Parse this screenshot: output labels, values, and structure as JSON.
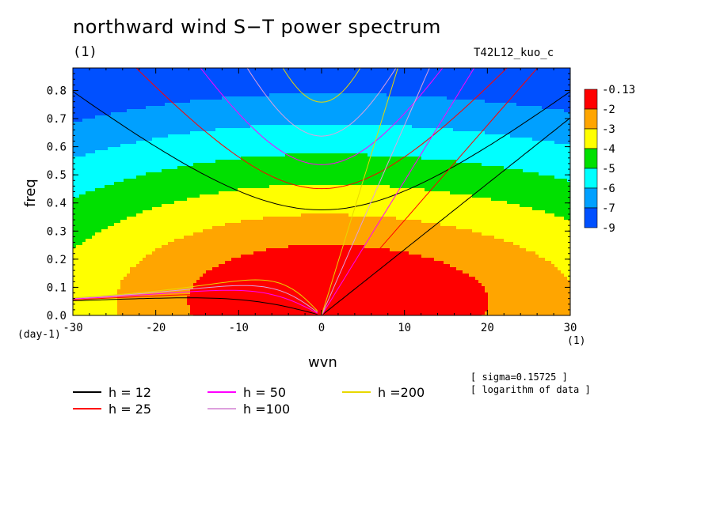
{
  "title": "northward wind S−T power spectrum",
  "subtitle_left": "(1)",
  "subtitle_right": "T42L12_kuo_c",
  "xlabel": "wvn",
  "xunit": "(1)",
  "ylabel": "freq",
  "yunit": "(day-1)",
  "notes": [
    "[ sigma=0.15725 ]",
    "[ logarithm of data ]"
  ],
  "chart_data": {
    "type": "heatmap",
    "title": "northward wind S−T power spectrum",
    "xlabel": "wvn",
    "ylabel": "freq",
    "xlim": [
      -30,
      30
    ],
    "ylim": [
      0,
      0.88
    ],
    "xticks": [
      -30,
      -20,
      -10,
      0,
      10,
      20,
      30
    ],
    "xtick_labels": [
      "-30",
      "-20",
      "-10",
      "0",
      "10",
      "20",
      "30"
    ],
    "yticks": [
      0.0,
      0.1,
      0.2,
      0.3,
      0.4,
      0.5,
      0.6,
      0.7,
      0.8
    ],
    "ytick_labels": [
      "0.0",
      "0.1",
      "0.2",
      "0.3",
      "0.4",
      "0.5",
      "0.6",
      "0.7",
      "0.8"
    ],
    "colorbar": {
      "labels": [
        "-0.13",
        "-2",
        "-3",
        "-4",
        "-5",
        "-6",
        "-7",
        "-9"
      ],
      "colors": [
        "#ff0000",
        "#ffa500",
        "#ffff00",
        "#00e000",
        "#00ffff",
        "#00a0ff",
        "#0050ff"
      ]
    },
    "contour_levels": [
      -2,
      -3,
      -4,
      -5,
      -6,
      -7
    ],
    "field_model": {
      "peak_log_power": -0.13,
      "peak_wvn": 0,
      "peak_freq": 0.05,
      "decay_wvn_east": 0.093,
      "decay_wvn_west": 0.116,
      "decay_freq": 9.3
    },
    "dispersion_curves": {
      "legend_position": "below",
      "series": [
        {
          "name": "h = 12",
          "h": 12,
          "color": "#000000"
        },
        {
          "name": "h = 25",
          "h": 25,
          "color": "#ff0000"
        },
        {
          "name": "h = 50",
          "h": 50,
          "color": "#ff00ff"
        },
        {
          "name": "h =100",
          "h": 100,
          "color": "#dda0dd"
        },
        {
          "name": "h =200",
          "h": 200,
          "color": "#e8d800"
        }
      ]
    }
  }
}
